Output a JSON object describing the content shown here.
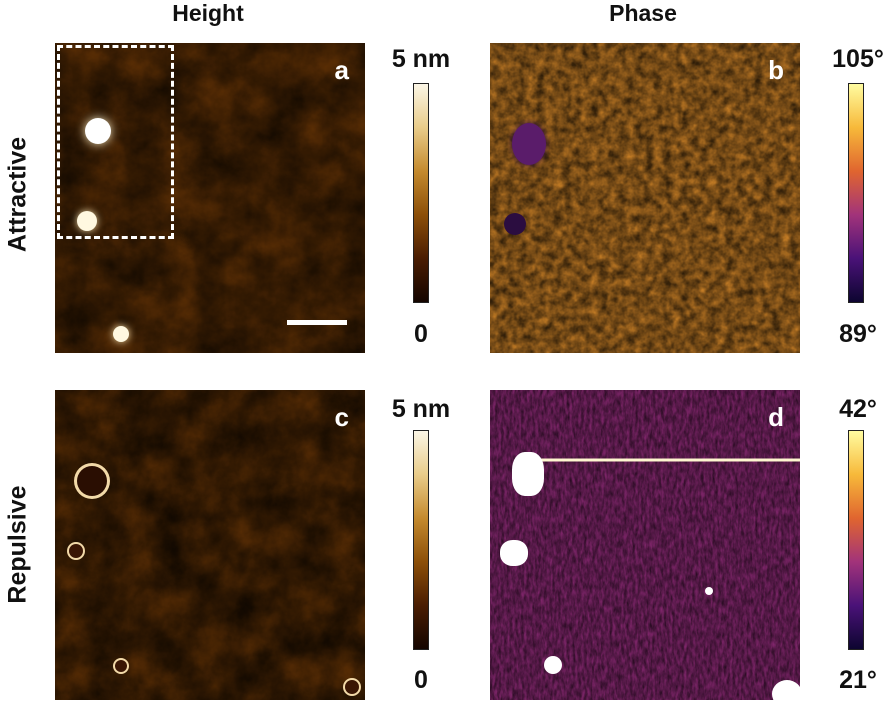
{
  "columns": {
    "height": "Height",
    "phase": "Phase"
  },
  "rows": {
    "attractive": "Attractive",
    "repulsive": "Repulsive"
  },
  "panels": [
    {
      "id": "a",
      "letter": "a",
      "cbar_max": "5 nm",
      "cbar_min": "0"
    },
    {
      "id": "b",
      "letter": "b",
      "cbar_max": "105°",
      "cbar_min": "89°"
    },
    {
      "id": "c",
      "letter": "c",
      "cbar_max": "5 nm",
      "cbar_min": "0"
    },
    {
      "id": "d",
      "letter": "d",
      "cbar_max": "42°",
      "cbar_min": "21°"
    }
  ],
  "colors": {
    "height_map": [
      "#140500",
      "#4a1d02",
      "#8c4f08",
      "#c48a2e",
      "#e9cc8a",
      "#fbf6e6"
    ],
    "phase_map": [
      "#0d0530",
      "#4a1278",
      "#a2337a",
      "#e0652f",
      "#f7b93a",
      "#fffca0"
    ]
  }
}
